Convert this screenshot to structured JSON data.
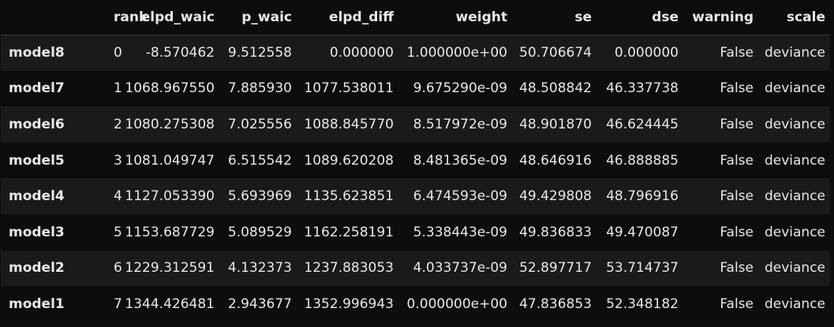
{
  "columns": {
    "index": "",
    "rank": "rank",
    "elpd_waic": "elpd_waic",
    "p_waic": "p_waic",
    "elpd_diff": "elpd_diff",
    "weight": "weight",
    "se": "se",
    "dse": "dse",
    "warning": "warning",
    "scale": "scale"
  },
  "rows": [
    {
      "model": "model8",
      "rank": "0",
      "elpd_waic": "-8.570462",
      "p_waic": "9.512558",
      "elpd_diff": "0.000000",
      "weight": "1.000000e+00",
      "se": "50.706674",
      "dse": "0.000000",
      "warning": "False",
      "scale": "deviance"
    },
    {
      "model": "model7",
      "rank": "1",
      "elpd_waic": "1068.967550",
      "p_waic": "7.885930",
      "elpd_diff": "1077.538011",
      "weight": "9.675290e-09",
      "se": "48.508842",
      "dse": "46.337738",
      "warning": "False",
      "scale": "deviance"
    },
    {
      "model": "model6",
      "rank": "2",
      "elpd_waic": "1080.275308",
      "p_waic": "7.025556",
      "elpd_diff": "1088.845770",
      "weight": "8.517972e-09",
      "se": "48.901870",
      "dse": "46.624445",
      "warning": "False",
      "scale": "deviance"
    },
    {
      "model": "model5",
      "rank": "3",
      "elpd_waic": "1081.049747",
      "p_waic": "6.515542",
      "elpd_diff": "1089.620208",
      "weight": "8.481365e-09",
      "se": "48.646916",
      "dse": "46.888885",
      "warning": "False",
      "scale": "deviance"
    },
    {
      "model": "model4",
      "rank": "4",
      "elpd_waic": "1127.053390",
      "p_waic": "5.693969",
      "elpd_diff": "1135.623851",
      "weight": "6.474593e-09",
      "se": "49.429808",
      "dse": "48.796916",
      "warning": "False",
      "scale": "deviance"
    },
    {
      "model": "model3",
      "rank": "5",
      "elpd_waic": "1153.687729",
      "p_waic": "5.089529",
      "elpd_diff": "1162.258191",
      "weight": "5.338443e-09",
      "se": "49.836833",
      "dse": "49.470087",
      "warning": "False",
      "scale": "deviance"
    },
    {
      "model": "model2",
      "rank": "6",
      "elpd_waic": "1229.312591",
      "p_waic": "4.132373",
      "elpd_diff": "1237.883053",
      "weight": "4.033737e-09",
      "se": "52.897717",
      "dse": "53.714737",
      "warning": "False",
      "scale": "deviance"
    },
    {
      "model": "model1",
      "rank": "7",
      "elpd_waic": "1344.426481",
      "p_waic": "2.943677",
      "elpd_diff": "1352.996943",
      "weight": "0.000000e+00",
      "se": "47.836853",
      "dse": "52.348182",
      "warning": "False",
      "scale": "deviance"
    }
  ]
}
